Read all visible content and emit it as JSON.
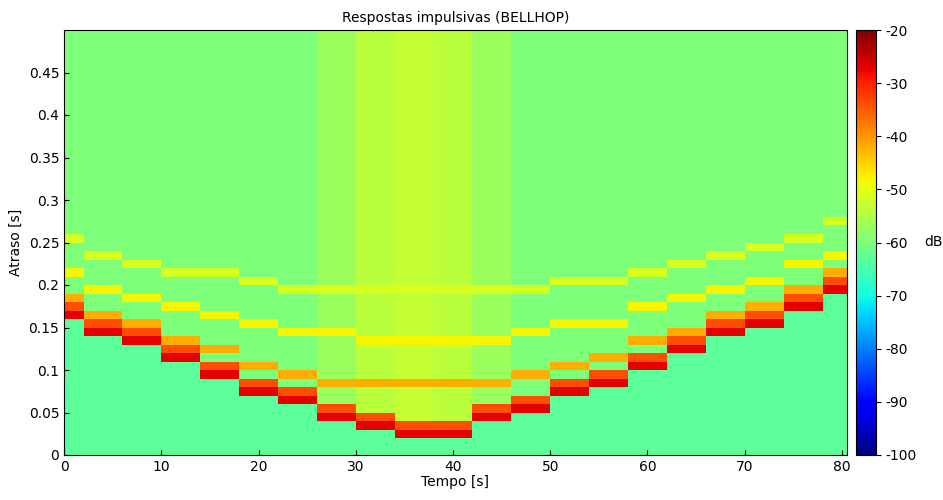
{
  "chart_data": {
    "type": "heatmap",
    "title": "Respostas impulsivas (BELLHOP)",
    "x_label": "Tempo [s]",
    "y_label": "Atraso [s]",
    "xlim": [
      0,
      80.5
    ],
    "ylim": [
      0,
      0.5
    ],
    "xticks": [
      0,
      10,
      20,
      30,
      40,
      50,
      60,
      70,
      80
    ],
    "yticks": [
      0,
      0.05,
      0.1,
      0.15,
      0.2,
      0.25,
      0.3,
      0.35,
      0.4,
      0.45
    ],
    "colorbar_range": [
      -100,
      -20
    ],
    "colorbar_ticks": [
      -100,
      -90,
      -80,
      -70,
      -60,
      -50,
      -40,
      -30,
      -20
    ],
    "colorbar_label": "dB",
    "x": [
      0,
      4,
      8,
      12,
      16,
      20,
      24,
      28,
      32,
      36,
      40,
      44,
      48,
      52,
      56,
      60,
      64,
      68,
      72,
      76,
      80
    ],
    "y": [
      0.005,
      0.015,
      0.025,
      0.035,
      0.045,
      0.055,
      0.065,
      0.075,
      0.085,
      0.095,
      0.105,
      0.115,
      0.125,
      0.135,
      0.145,
      0.155,
      0.165,
      0.175,
      0.185,
      0.195,
      0.205,
      0.215,
      0.225,
      0.235,
      0.245,
      0.255,
      0.265,
      0.275,
      0.285,
      0.295,
      0.305,
      0.315,
      0.325,
      0.335,
      0.345,
      0.355,
      0.365,
      0.375,
      0.385,
      0.395,
      0.405,
      0.415,
      0.425,
      0.435,
      0.445,
      0.455,
      0.465,
      0.475,
      0.485,
      0.495
    ],
    "cells": [
      [
        -63,
        -63,
        -63,
        -63,
        -63,
        -63,
        -63,
        -63,
        -63,
        -63,
        -63,
        -63,
        -63,
        -63,
        -63,
        -63,
        -63,
        -63,
        -63,
        -63,
        -63
      ],
      [
        -63,
        -63,
        -63,
        -63,
        -63,
        -63,
        -63,
        -63,
        -63,
        -63,
        -63,
        -63,
        -63,
        -63,
        -63,
        -63,
        -63,
        -63,
        -63,
        -63,
        -63
      ],
      [
        -63,
        -63,
        -63,
        -63,
        -63,
        -63,
        -63,
        -63,
        -63,
        -27,
        -27,
        -63,
        -63,
        -63,
        -63,
        -63,
        -63,
        -63,
        -63,
        -63,
        -63
      ],
      [
        -63,
        -63,
        -63,
        -63,
        -63,
        -63,
        -63,
        -63,
        -27,
        -34,
        -34,
        -63,
        -63,
        -63,
        -63,
        -63,
        -63,
        -63,
        -63,
        -63,
        -63
      ],
      [
        -63,
        -63,
        -63,
        -63,
        -63,
        -63,
        -63,
        -27,
        -34,
        -53,
        -54,
        -27,
        -63,
        -63,
        -63,
        -63,
        -63,
        -63,
        -63,
        -63,
        -63
      ],
      [
        -63,
        -63,
        -63,
        -63,
        -63,
        -63,
        -63,
        -34,
        -54,
        -53,
        -54,
        -34,
        -27,
        -63,
        -63,
        -63,
        -63,
        -63,
        -63,
        -63,
        -63
      ],
      [
        -63,
        -63,
        -63,
        -63,
        -63,
        -63,
        -27,
        -57,
        -54,
        -53,
        -54,
        -57,
        -34,
        -63,
        -63,
        -63,
        -63,
        -63,
        -63,
        -63,
        -63
      ],
      [
        -63,
        -63,
        -63,
        -63,
        -63,
        -27,
        -34,
        -57,
        -54,
        -53,
        -54,
        -57,
        -60,
        -27,
        -63,
        -63,
        -63,
        -63,
        -63,
        -63,
        -63
      ],
      [
        -63,
        -63,
        -63,
        -63,
        -63,
        -34,
        -60,
        -42,
        -42,
        -42,
        -42,
        -42,
        -60,
        -34,
        -27,
        -63,
        -63,
        -63,
        -63,
        -63,
        -63
      ],
      [
        -63,
        -63,
        -63,
        -63,
        -27,
        -60,
        -42,
        -57,
        -54,
        -53,
        -54,
        -57,
        -42,
        -60,
        -34,
        -63,
        -63,
        -63,
        -63,
        -63,
        -63
      ],
      [
        -63,
        -63,
        -63,
        -63,
        -34,
        -42,
        -60,
        -57,
        -54,
        -53,
        -54,
        -57,
        -60,
        -42,
        -60,
        -27,
        -63,
        -63,
        -63,
        -63,
        -63
      ],
      [
        -63,
        -63,
        -63,
        -27,
        -60,
        -60,
        -60,
        -57,
        -54,
        -53,
        -54,
        -57,
        -60,
        -60,
        -42,
        -34,
        -63,
        -63,
        -63,
        -63,
        -63
      ],
      [
        -63,
        -63,
        -63,
        -34,
        -42,
        -60,
        -60,
        -57,
        -54,
        -53,
        -54,
        -57,
        -60,
        -60,
        -60,
        -60,
        -27,
        -63,
        -63,
        -63,
        -63
      ],
      [
        -63,
        -63,
        -27,
        -42,
        -60,
        -60,
        -60,
        -57,
        -48,
        -48,
        -48,
        -48,
        -60,
        -60,
        -60,
        -42,
        -34,
        -63,
        -63,
        -63,
        -63
      ],
      [
        -63,
        -27,
        -34,
        -60,
        -60,
        -60,
        -48,
        -48,
        -54,
        -53,
        -54,
        -57,
        -48,
        -60,
        -60,
        -60,
        -42,
        -27,
        -63,
        -63,
        -63
      ],
      [
        -63,
        -34,
        -42,
        -60,
        -60,
        -48,
        -60,
        -57,
        -54,
        -53,
        -54,
        -57,
        -60,
        -48,
        -48,
        -60,
        -60,
        -34,
        -27,
        -63,
        -63
      ],
      [
        -27,
        -42,
        -60,
        -60,
        -48,
        -60,
        -60,
        -57,
        -54,
        -53,
        -54,
        -57,
        -60,
        -60,
        -60,
        -60,
        -60,
        -42,
        -34,
        -63,
        -63
      ],
      [
        -34,
        -60,
        -60,
        -48,
        -60,
        -60,
        -60,
        -57,
        -54,
        -53,
        -54,
        -57,
        -60,
        -60,
        -60,
        -48,
        -60,
        -60,
        -42,
        -27,
        -63
      ],
      [
        -42,
        -60,
        -48,
        -60,
        -60,
        -60,
        -60,
        -57,
        -54,
        -53,
        -54,
        -57,
        -60,
        -60,
        -60,
        -60,
        -48,
        -60,
        -60,
        -34,
        -63
      ],
      [
        -60,
        -48,
        -60,
        -60,
        -60,
        -60,
        -51,
        -51,
        -51,
        -51,
        -51,
        -51,
        -51,
        -60,
        -60,
        -60,
        -60,
        -48,
        -60,
        -42,
        -27
      ],
      [
        -60,
        -60,
        -60,
        -60,
        -60,
        -51,
        -60,
        -57,
        -54,
        -53,
        -54,
        -57,
        -60,
        -51,
        -51,
        -60,
        -60,
        -60,
        -48,
        -60,
        -34
      ],
      [
        -48,
        -60,
        -60,
        -51,
        -51,
        -60,
        -60,
        -57,
        -54,
        -53,
        -54,
        -57,
        -60,
        -60,
        -60,
        -51,
        -60,
        -60,
        -60,
        -60,
        -42
      ],
      [
        -60,
        -60,
        -51,
        -60,
        -60,
        -60,
        -60,
        -57,
        -54,
        -53,
        -54,
        -57,
        -60,
        -60,
        -60,
        -60,
        -51,
        -60,
        -60,
        -48,
        -60
      ],
      [
        -60,
        -51,
        -60,
        -60,
        -60,
        -60,
        -60,
        -57,
        -54,
        -53,
        -54,
        -57,
        -60,
        -60,
        -60,
        -60,
        -60,
        -51,
        -60,
        -60,
        -48
      ],
      [
        -60,
        -60,
        -60,
        -60,
        -60,
        -60,
        -60,
        -57,
        -54,
        -53,
        -54,
        -57,
        -60,
        -60,
        -60,
        -60,
        -60,
        -60,
        -51,
        -60,
        -60
      ],
      [
        -51,
        -60,
        -60,
        -60,
        -60,
        -60,
        -60,
        -57,
        -54,
        -53,
        -54,
        -57,
        -60,
        -60,
        -60,
        -60,
        -60,
        -60,
        -60,
        -51,
        -60
      ],
      [
        -60,
        -60,
        -60,
        -60,
        -60,
        -60,
        -60,
        -57,
        -54,
        -53,
        -54,
        -57,
        -60,
        -60,
        -60,
        -60,
        -60,
        -60,
        -60,
        -60,
        -60
      ],
      [
        -60,
        -60,
        -60,
        -60,
        -60,
        -60,
        -60,
        -57,
        -54,
        -53,
        -54,
        -57,
        -60,
        -60,
        -60,
        -60,
        -60,
        -60,
        -60,
        -60,
        -51
      ],
      [
        -60,
        -60,
        -60,
        -60,
        -60,
        -60,
        -60,
        -57,
        -54,
        -53,
        -54,
        -57,
        -60,
        -60,
        -60,
        -60,
        -60,
        -60,
        -60,
        -60,
        -60
      ],
      [
        -60,
        -60,
        -60,
        -60,
        -60,
        -60,
        -60,
        -57,
        -54,
        -53,
        -54,
        -57,
        -60,
        -60,
        -60,
        -60,
        -60,
        -60,
        -60,
        -60,
        -60
      ],
      [
        -60,
        -60,
        -60,
        -60,
        -60,
        -60,
        -60,
        -57,
        -54,
        -53,
        -54,
        -57,
        -60,
        -60,
        -60,
        -60,
        -60,
        -60,
        -60,
        -60,
        -60
      ],
      [
        -60,
        -60,
        -60,
        -60,
        -60,
        -60,
        -60,
        -57,
        -54,
        -53,
        -54,
        -57,
        -60,
        -60,
        -60,
        -60,
        -60,
        -60,
        -60,
        -60,
        -60
      ],
      [
        -60,
        -60,
        -60,
        -60,
        -60,
        -60,
        -60,
        -57,
        -54,
        -53,
        -54,
        -57,
        -60,
        -60,
        -60,
        -60,
        -60,
        -60,
        -60,
        -60,
        -60
      ],
      [
        -60,
        -60,
        -60,
        -60,
        -60,
        -60,
        -60,
        -57,
        -54,
        -53,
        -54,
        -57,
        -60,
        -60,
        -60,
        -60,
        -60,
        -60,
        -60,
        -60,
        -60
      ],
      [
        -60,
        -60,
        -60,
        -60,
        -60,
        -60,
        -60,
        -57,
        -54,
        -53,
        -54,
        -57,
        -60,
        -60,
        -60,
        -60,
        -60,
        -60,
        -60,
        -60,
        -60
      ],
      [
        -60,
        -60,
        -60,
        -60,
        -60,
        -60,
        -60,
        -57,
        -54,
        -53,
        -54,
        -57,
        -60,
        -60,
        -60,
        -60,
        -60,
        -60,
        -60,
        -60,
        -60
      ],
      [
        -60,
        -60,
        -60,
        -60,
        -60,
        -60,
        -60,
        -57,
        -54,
        -53,
        -54,
        -57,
        -60,
        -60,
        -60,
        -60,
        -60,
        -60,
        -60,
        -60,
        -60
      ],
      [
        -60,
        -60,
        -60,
        -60,
        -60,
        -60,
        -60,
        -57,
        -54,
        -53,
        -54,
        -57,
        -60,
        -60,
        -60,
        -60,
        -60,
        -60,
        -60,
        -60,
        -60
      ],
      [
        -60,
        -60,
        -60,
        -60,
        -60,
        -60,
        -60,
        -57,
        -54,
        -53,
        -54,
        -57,
        -60,
        -60,
        -60,
        -60,
        -60,
        -60,
        -60,
        -60,
        -60
      ],
      [
        -60,
        -60,
        -60,
        -60,
        -60,
        -60,
        -60,
        -57,
        -54,
        -53,
        -54,
        -57,
        -60,
        -60,
        -60,
        -60,
        -60,
        -60,
        -60,
        -60,
        -60
      ],
      [
        -60,
        -60,
        -60,
        -60,
        -60,
        -60,
        -60,
        -57,
        -54,
        -53,
        -54,
        -57,
        -60,
        -60,
        -60,
        -60,
        -60,
        -60,
        -60,
        -60,
        -60
      ],
      [
        -60,
        -60,
        -60,
        -60,
        -60,
        -60,
        -60,
        -57,
        -54,
        -53,
        -54,
        -57,
        -60,
        -60,
        -60,
        -60,
        -60,
        -60,
        -60,
        -60,
        -60
      ],
      [
        -60,
        -60,
        -60,
        -60,
        -60,
        -60,
        -60,
        -57,
        -54,
        -53,
        -54,
        -57,
        -60,
        -60,
        -60,
        -60,
        -60,
        -60,
        -60,
        -60,
        -60
      ],
      [
        -60,
        -60,
        -60,
        -60,
        -60,
        -60,
        -60,
        -57,
        -54,
        -53,
        -54,
        -57,
        -60,
        -60,
        -60,
        -60,
        -60,
        -60,
        -60,
        -60,
        -60
      ],
      [
        -60,
        -60,
        -60,
        -60,
        -60,
        -60,
        -60,
        -57,
        -54,
        -53,
        -54,
        -57,
        -60,
        -60,
        -60,
        -60,
        -60,
        -60,
        -60,
        -60,
        -60
      ],
      [
        -60,
        -60,
        -60,
        -60,
        -60,
        -60,
        -60,
        -57,
        -54,
        -53,
        -54,
        -57,
        -60,
        -60,
        -60,
        -60,
        -60,
        -60,
        -60,
        -60,
        -60
      ],
      [
        -60,
        -60,
        -60,
        -60,
        -60,
        -60,
        -60,
        -57,
        -54,
        -53,
        -54,
        -57,
        -60,
        -60,
        -60,
        -60,
        -60,
        -60,
        -60,
        -60,
        -60
      ],
      [
        -60,
        -60,
        -60,
        -60,
        -60,
        -60,
        -60,
        -57,
        -54,
        -53,
        -54,
        -57,
        -60,
        -60,
        -60,
        -60,
        -60,
        -60,
        -60,
        -60,
        -60
      ],
      [
        -60,
        -60,
        -60,
        -60,
        -60,
        -60,
        -60,
        -57,
        -54,
        -53,
        -54,
        -57,
        -60,
        -60,
        -60,
        -60,
        -60,
        -60,
        -60,
        -60,
        -60
      ],
      [
        -60,
        -60,
        -60,
        -60,
        -60,
        -60,
        -60,
        -57,
        -54,
        -53,
        -54,
        -57,
        -60,
        -60,
        -60,
        -60,
        -60,
        -60,
        -60,
        -60,
        -60
      ]
    ]
  }
}
